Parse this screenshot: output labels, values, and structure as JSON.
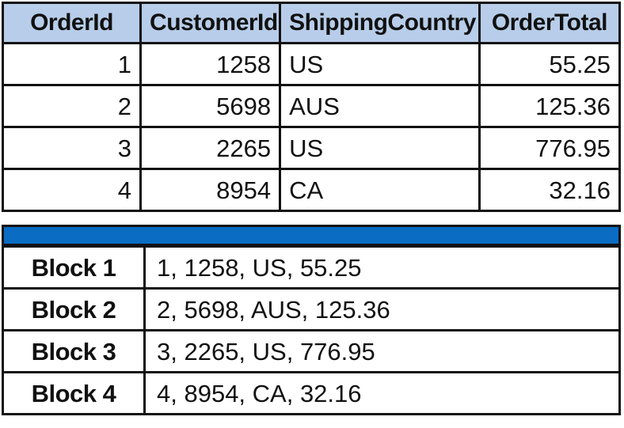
{
  "orders_table": {
    "headers": [
      "OrderId",
      "CustomerId",
      "ShippingCountry",
      "OrderTotal"
    ],
    "rows": [
      {
        "order_id": "1",
        "customer_id": "1258",
        "shipping_country": "US",
        "order_total": "55.25"
      },
      {
        "order_id": "2",
        "customer_id": "5698",
        "shipping_country": "AUS",
        "order_total": "125.36"
      },
      {
        "order_id": "3",
        "customer_id": "2265",
        "shipping_country": "US",
        "order_total": "776.95"
      },
      {
        "order_id": "4",
        "customer_id": "8954",
        "shipping_country": "CA",
        "order_total": "32.16"
      }
    ]
  },
  "separator": {
    "color": "#0a6cc3"
  },
  "header_color": "#b7cde9",
  "blocks": [
    {
      "label": "Block 1",
      "content": "1, 1258, US, 55.25"
    },
    {
      "label": "Block 2",
      "content": "2, 5698, AUS, 125.36"
    },
    {
      "label": "Block 3",
      "content": "3, 2265, US, 776.95"
    },
    {
      "label": "Block 4",
      "content": "4, 8954, CA, 32.16"
    }
  ]
}
